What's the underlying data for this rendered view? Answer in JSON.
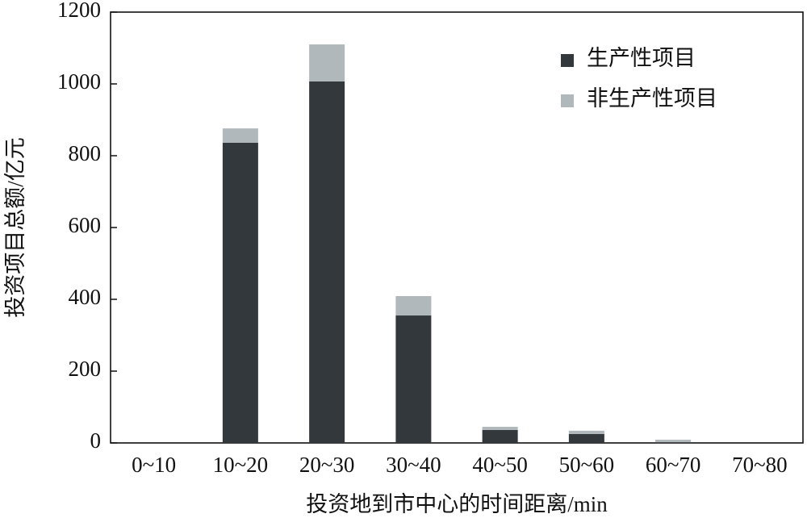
{
  "chart_data": {
    "type": "stacked_bar",
    "x_label": "投资地到市中心的时间距离/min",
    "y_label": "投资项目总额/亿元",
    "categories": [
      "0~10",
      "10~20",
      "20~30",
      "30~40",
      "40~50",
      "50~60",
      "60~70",
      "70~80"
    ],
    "series": [
      {
        "name": "生产性项目",
        "color": "#33383d",
        "values": [
          0,
          836,
          1007,
          355,
          36,
          25,
          2,
          0
        ]
      },
      {
        "name": "非生产性项目",
        "color": "#b0b8bb",
        "values": [
          0,
          40,
          103,
          54,
          9,
          9,
          7,
          0
        ]
      }
    ],
    "ylim": [
      0,
      1200
    ],
    "yticks": [
      0,
      200,
      400,
      600,
      800,
      1000,
      1200
    ],
    "legend": "upper right"
  }
}
